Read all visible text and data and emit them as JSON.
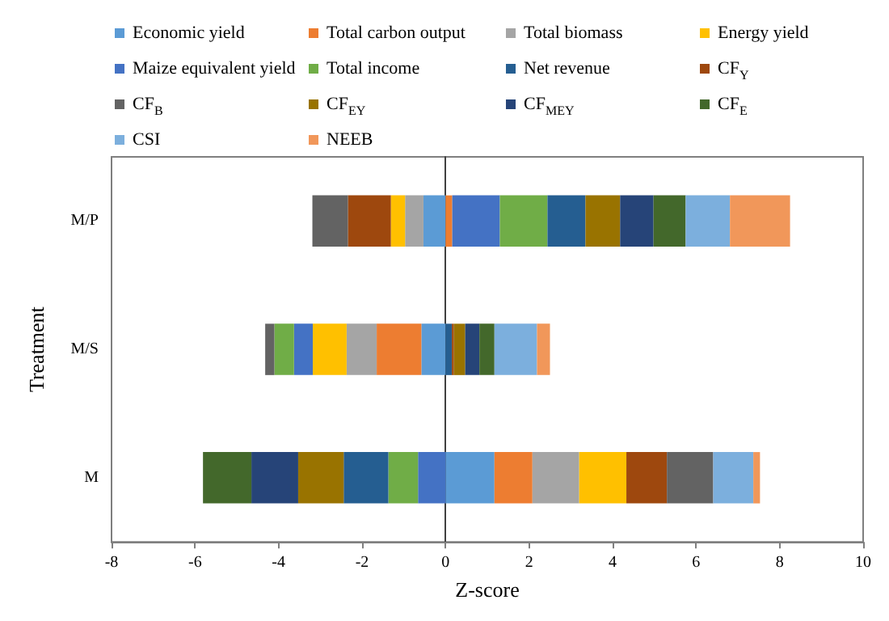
{
  "chart_data": {
    "type": "bar",
    "orientation": "horizontal",
    "stacked": true,
    "xlabel": "Z-score",
    "ylabel": "Treatment",
    "categories": [
      "M/P",
      "M/S",
      "M"
    ],
    "xlim": [
      -8,
      10
    ],
    "xticks": [
      -8,
      -6,
      -4,
      -2,
      0,
      2,
      4,
      6,
      8,
      10
    ],
    "legend": "top",
    "series": [
      {
        "name": "Economic yield",
        "color": "#5b9bd5",
        "values": [
          -0.53,
          -0.58,
          1.17
        ]
      },
      {
        "name": "Total carbon output",
        "color": "#ed7d31",
        "values": [
          0.16,
          -1.07,
          0.91
        ]
      },
      {
        "name": "Total biomass",
        "color": "#a5a5a5",
        "values": [
          -0.44,
          -0.72,
          1.12
        ]
      },
      {
        "name": "Energy yield",
        "color": "#ffc000",
        "values": [
          -0.34,
          -0.81,
          1.13
        ]
      },
      {
        "name": "Maize equivalent yield",
        "color": "#4472c4",
        "values": [
          1.14,
          -0.45,
          -0.66
        ]
      },
      {
        "name": "Total income",
        "color": "#70ad47",
        "values": [
          1.14,
          -0.47,
          -0.71
        ]
      },
      {
        "name": "Net revenue",
        "color": "#255e91",
        "values": [
          0.91,
          0.15,
          -1.07
        ]
      },
      {
        "name": "CF$_{Y}$",
        "color": "#9e480e",
        "values": [
          -1.03,
          0.05,
          0.97
        ]
      },
      {
        "name": "CF$_{B}$",
        "color": "#636363",
        "values": [
          -0.85,
          -0.22,
          1.11
        ]
      },
      {
        "name": "CF$_{EY}$",
        "color": "#997300",
        "values": [
          0.83,
          0.27,
          -1.09
        ]
      },
      {
        "name": "CF$_{MEY}$",
        "color": "#264478",
        "values": [
          0.8,
          0.34,
          -1.12
        ]
      },
      {
        "name": "CF$_{E}$",
        "color": "#43682b",
        "values": [
          0.77,
          0.36,
          -1.16
        ]
      },
      {
        "name": "CSI",
        "color": "#7cafdd",
        "values": [
          1.06,
          1.02,
          0.96
        ]
      },
      {
        "name": "NEEB",
        "color": "#f1975a",
        "values": [
          1.44,
          0.31,
          0.16
        ]
      }
    ]
  }
}
